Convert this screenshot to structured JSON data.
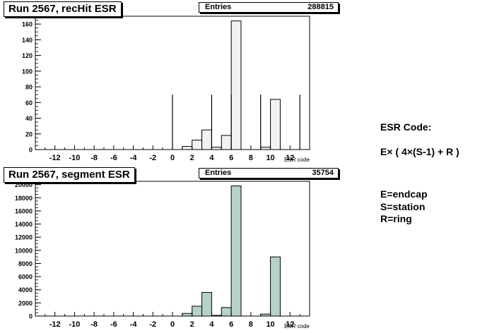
{
  "chart_data": [
    {
      "type": "bar",
      "title": "Run 2567, recHit ESR",
      "stats": {
        "label": "Entries",
        "value": "288815"
      },
      "xlabel": "ESR code",
      "ylabel": "",
      "xlim": [
        -14,
        14
      ],
      "ylim": [
        0,
        170
      ],
      "x_ticks": [
        -12,
        -10,
        -8,
        -6,
        -4,
        -2,
        0,
        2,
        4,
        6,
        8,
        10,
        12
      ],
      "y_ticks": [
        0,
        20,
        40,
        60,
        80,
        100,
        120,
        140,
        160
      ],
      "fill": "#f2f2f2",
      "bin_width": 1,
      "bins": [
        {
          "x": 0,
          "value": 0
        },
        {
          "x": 1,
          "value": 4
        },
        {
          "x": 2,
          "value": 12
        },
        {
          "x": 3,
          "value": 25
        },
        {
          "x": 4,
          "value": 3
        },
        {
          "x": 5,
          "value": 18
        },
        {
          "x": 6,
          "value": 164
        },
        {
          "x": 9,
          "value": 3
        },
        {
          "x": 10,
          "value": 64
        }
      ],
      "markers": [
        0,
        4,
        6,
        9,
        13
      ],
      "marker_height": 70
    },
    {
      "type": "bar",
      "title": "Run 2567, segment ESR",
      "stats": {
        "label": "Entries",
        "value": "35754"
      },
      "xlabel": "ESR code",
      "ylabel": "",
      "xlim": [
        -14,
        14
      ],
      "ylim": [
        0,
        20500
      ],
      "x_ticks": [
        -12,
        -10,
        -8,
        -6,
        -4,
        -2,
        0,
        2,
        4,
        6,
        8,
        10,
        12
      ],
      "y_ticks": [
        0,
        2000,
        4000,
        6000,
        8000,
        10000,
        12000,
        14000,
        16000,
        18000,
        20000
      ],
      "fill": "#b5d2c8",
      "bin_width": 1,
      "bins": [
        {
          "x": 1,
          "value": 400
        },
        {
          "x": 2,
          "value": 1500
        },
        {
          "x": 3,
          "value": 3600
        },
        {
          "x": 4,
          "value": 100
        },
        {
          "x": 5,
          "value": 1300
        },
        {
          "x": 6,
          "value": 19800
        },
        {
          "x": 9,
          "value": 300
        },
        {
          "x": 10,
          "value": 9000
        }
      ],
      "markers": [],
      "marker_height": 0
    }
  ],
  "legend": {
    "heading": "ESR Code:",
    "formula": "E× ( 4×(S-1) + R )",
    "lines": [
      "E=endcap",
      "S=station",
      "R=ring"
    ]
  }
}
